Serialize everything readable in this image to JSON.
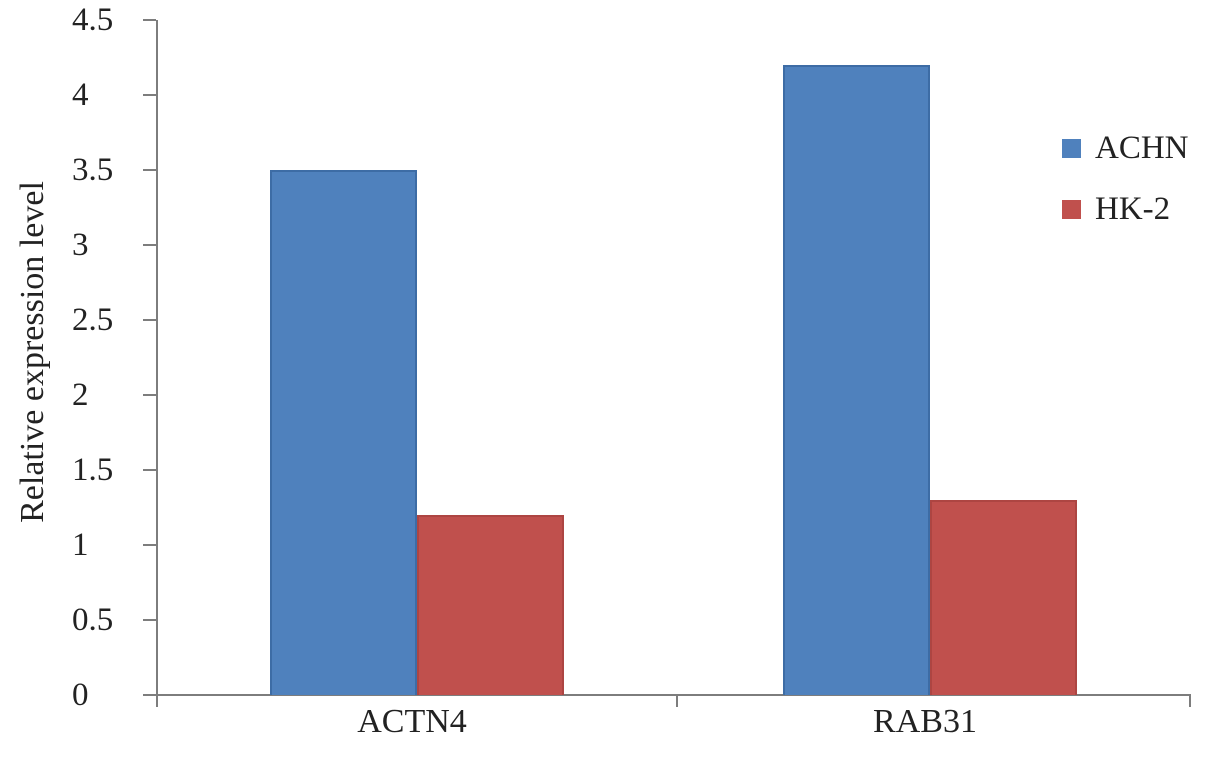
{
  "chart_data": {
    "type": "bar",
    "title": "",
    "xlabel": "",
    "ylabel": "Relative expression level",
    "categories": [
      "ACTN4",
      "RAB31"
    ],
    "series": [
      {
        "name": "ACHN",
        "color": "#4F81BD",
        "edge_color": "#3D6CA5",
        "values": [
          3.5,
          4.2
        ]
      },
      {
        "name": "HK-2",
        "color": "#C0504D",
        "edge_color": "#AD4542",
        "values": [
          1.2,
          1.3
        ]
      }
    ],
    "y_axis": {
      "min": 0,
      "max": 4.5,
      "step": 0.5,
      "tick_labels": [
        "0",
        "0.5",
        "1",
        "1.5",
        "2",
        "2.5",
        "3",
        "3.5",
        "4",
        "4.5"
      ]
    },
    "grid": false,
    "legend_position": "right",
    "plot_background": "#ffffff",
    "axis_color": "#7d7d7d",
    "text_color": "#222222"
  }
}
